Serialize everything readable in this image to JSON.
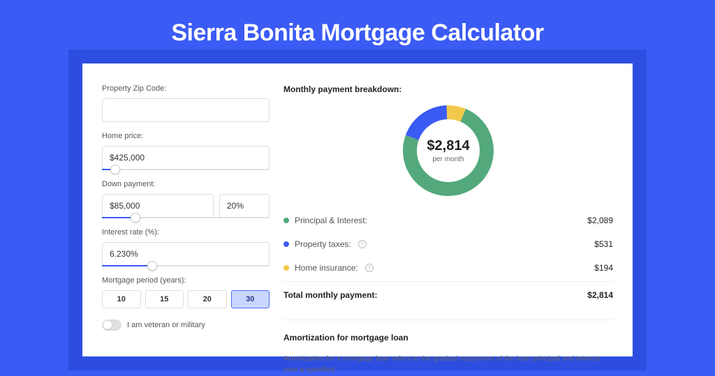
{
  "page": {
    "title": "Sierra Bonita Mortgage Calculator",
    "background_color": "#3b5bf5",
    "card_shadow_color": "#2d4de0"
  },
  "form": {
    "zip": {
      "label": "Property Zip Code:",
      "value": ""
    },
    "home_price": {
      "label": "Home price:",
      "value": "$425,000",
      "slider_pct": 8
    },
    "down_payment": {
      "label": "Down payment:",
      "amount": "$85,000",
      "pct": "20%",
      "slider_pct": 20
    },
    "interest_rate": {
      "label": "Interest rate (%):",
      "value": "6.230%",
      "slider_pct": 30
    },
    "period": {
      "label": "Mortgage period (years):",
      "options": [
        "10",
        "15",
        "20",
        "30"
      ],
      "active_index": 3
    },
    "veteran": {
      "label": "I am veteran or military",
      "on": false
    }
  },
  "breakdown": {
    "title": "Monthly payment breakdown:",
    "center_amount": "$2,814",
    "center_sub": "per month",
    "donut": {
      "size": 130,
      "thickness": 20,
      "segments": [
        {
          "label": "Principal & Interest:",
          "color": "#53a97c",
          "value": "$2,089",
          "num": 2089
        },
        {
          "label": "Property taxes:",
          "color": "#3b5bf5",
          "value": "$531",
          "num": 531,
          "info": true
        },
        {
          "label": "Home insurance:",
          "color": "#f2c94c",
          "value": "$194",
          "num": 194,
          "info": true
        }
      ]
    },
    "total": {
      "label": "Total monthly payment:",
      "value": "$2,814"
    }
  },
  "amortization": {
    "title": "Amortization for mortgage loan",
    "description": "Amortization for a mortgage loan refers to the gradual repayment of the loan principal and interest over a specified"
  }
}
